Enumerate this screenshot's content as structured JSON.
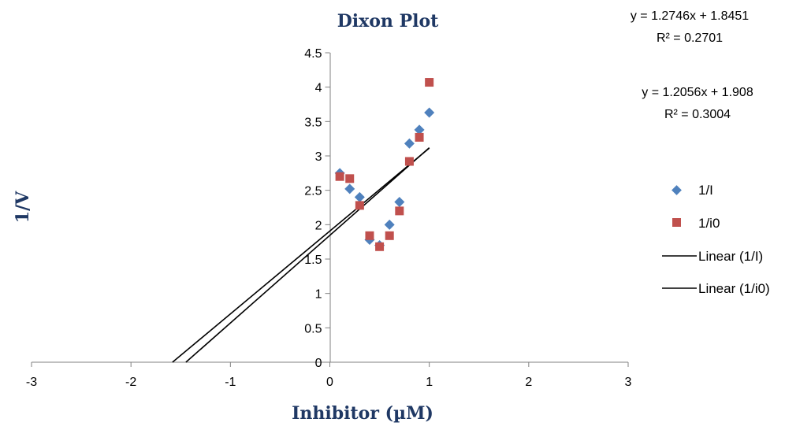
{
  "chart_data": {
    "type": "scatter",
    "title": "Dixon Plot",
    "xlabel": "Inhibitor (µM)",
    "ylabel": "1/V",
    "xlim": [
      -3,
      3
    ],
    "ylim": [
      0,
      4.5
    ],
    "x_ticks": [
      "-3",
      "-2",
      "-1",
      "0",
      "1",
      "2",
      "3"
    ],
    "y_ticks": [
      "0",
      "0.5",
      "1",
      "1.5",
      "2",
      "2.5",
      "3",
      "3.5",
      "4",
      "4.5"
    ],
    "grid": false,
    "legend_position": "right",
    "series": [
      {
        "name": "1/I",
        "marker": "diamond",
        "color": "#4F81BD",
        "x": [
          0.1,
          0.2,
          0.3,
          0.4,
          0.5,
          0.6,
          0.7,
          0.8,
          0.9,
          1.0
        ],
        "y": [
          2.75,
          2.52,
          2.4,
          1.78,
          1.7,
          2.0,
          2.33,
          3.18,
          3.38,
          3.63
        ]
      },
      {
        "name": "1/i0",
        "marker": "square",
        "color": "#C0504D",
        "x": [
          0.1,
          0.2,
          0.3,
          0.4,
          0.5,
          0.6,
          0.7,
          0.8,
          0.9,
          1.0
        ],
        "y": [
          2.7,
          2.67,
          2.28,
          1.84,
          1.68,
          1.84,
          2.2,
          2.92,
          3.27,
          4.07
        ]
      }
    ],
    "trendlines": [
      {
        "name": "Linear (1/I)",
        "slope": 1.2746,
        "intercept": 1.8451,
        "equation": "y = 1.2746x + 1.8451",
        "r2": "R² = 0.2701",
        "x_range": [
          -1.4476,
          1.0
        ],
        "color": "#000000"
      },
      {
        "name": "Linear (1/i0)",
        "slope": 1.2056,
        "intercept": 1.908,
        "equation": "y = 1.2056x + 1.908",
        "r2": "R² = 0.3004",
        "x_range": [
          -1.5826,
          1.0
        ],
        "color": "#000000"
      }
    ]
  }
}
